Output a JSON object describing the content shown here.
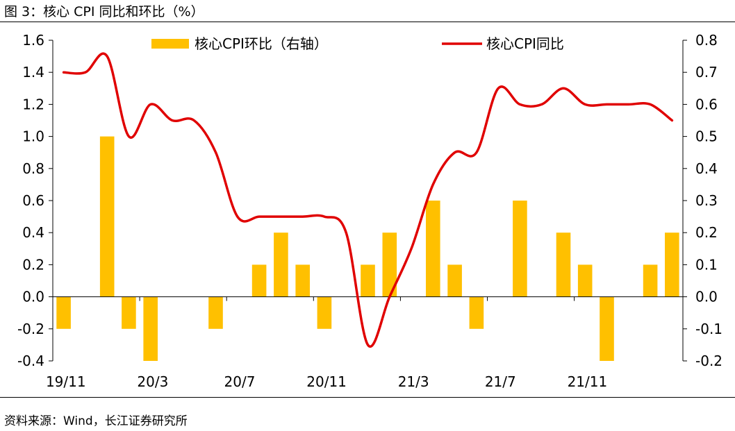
{
  "figure": {
    "title": "图 3：核心 CPI 同比和环比（%）",
    "source": "资料来源：Wind，长江证券研究所"
  },
  "chart_data": {
    "type": "bar+line",
    "title": "",
    "categories": [
      "19/11",
      "19/12",
      "20/1",
      "20/2",
      "20/3",
      "20/4",
      "20/5",
      "20/6",
      "20/7",
      "20/8",
      "20/9",
      "20/10",
      "20/11",
      "20/12",
      "21/1",
      "21/2",
      "21/3",
      "21/4",
      "21/5",
      "21/6",
      "21/7",
      "21/8",
      "21/9",
      "21/10",
      "21/11",
      "21/12",
      "22/1",
      "22/2",
      "22/3"
    ],
    "xtick_labels": [
      "19/11",
      "20/3",
      "20/7",
      "20/11",
      "21/3",
      "21/7",
      "21/11"
    ],
    "xtick_indices": [
      0,
      4,
      8,
      12,
      16,
      20,
      24
    ],
    "series": [
      {
        "name": "核心CPI环比（右轴）",
        "type": "bar",
        "axis": "right",
        "color": "#FFC000",
        "values": [
          -0.1,
          0,
          0.5,
          -0.1,
          -0.2,
          0,
          0,
          -0.1,
          0,
          0.1,
          0.2,
          0.1,
          -0.1,
          0,
          0.1,
          0.2,
          0,
          0.3,
          0.1,
          -0.1,
          0,
          0.3,
          0,
          0.2,
          0.1,
          -0.2,
          0,
          0.1,
          0.2
        ]
      },
      {
        "name": "核心CPI同比",
        "type": "line",
        "axis": "left",
        "color": "#E00000",
        "values": [
          1.4,
          1.4,
          1.5,
          1.0,
          1.2,
          1.1,
          1.1,
          0.9,
          0.5,
          0.5,
          0.5,
          0.5,
          0.5,
          0.4,
          -0.3,
          0.0,
          0.3,
          0.7,
          0.9,
          0.9,
          1.3,
          1.2,
          1.2,
          1.3,
          1.2,
          1.2,
          1.2,
          1.2,
          1.1
        ]
      }
    ],
    "y_left": {
      "min": -0.4,
      "max": 1.6,
      "ticks": [
        "-0.4",
        "-0.2",
        "0.0",
        "0.2",
        "0.4",
        "0.6",
        "0.8",
        "1.0",
        "1.2",
        "1.4",
        "1.6"
      ]
    },
    "y_right": {
      "min": -0.2,
      "max": 0.8,
      "ticks": [
        "-0.2",
        "-0.1",
        "0.0",
        "0.1",
        "0.2",
        "0.3",
        "0.4",
        "0.5",
        "0.6",
        "0.7",
        "0.8"
      ]
    },
    "grid": false,
    "legend_position": "top"
  }
}
